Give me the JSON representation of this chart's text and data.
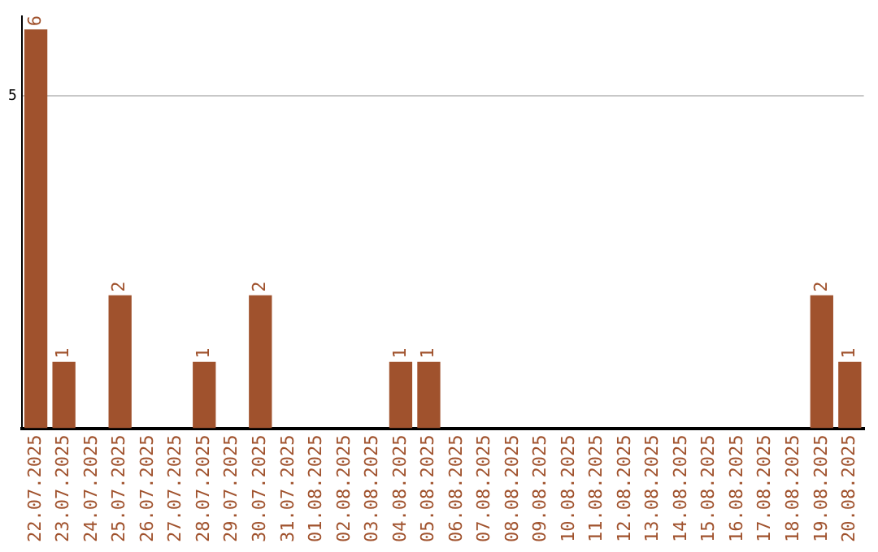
{
  "chart_data": {
    "type": "bar",
    "categories": [
      "22.07.2025",
      "23.07.2025",
      "24.07.2025",
      "25.07.2025",
      "26.07.2025",
      "27.07.2025",
      "28.07.2025",
      "29.07.2025",
      "30.07.2025",
      "31.07.2025",
      "01.08.2025",
      "02.08.2025",
      "03.08.2025",
      "04.08.2025",
      "05.08.2025",
      "06.08.2025",
      "07.08.2025",
      "08.08.2025",
      "09.08.2025",
      "10.08.2025",
      "11.08.2025",
      "12.08.2025",
      "13.08.2025",
      "14.08.2025",
      "15.08.2025",
      "16.08.2025",
      "17.08.2025",
      "18.08.2025",
      "19.08.2025",
      "20.08.2025"
    ],
    "values": [
      6,
      1,
      0,
      2,
      0,
      0,
      1,
      0,
      2,
      0,
      0,
      0,
      0,
      1,
      1,
      0,
      0,
      0,
      0,
      0,
      0,
      0,
      0,
      0,
      0,
      0,
      0,
      0,
      2,
      1
    ],
    "value_labels": [
      "6",
      "1",
      null,
      "2",
      null,
      null,
      "1",
      null,
      "2",
      null,
      null,
      null,
      null,
      "1",
      "1",
      null,
      null,
      null,
      null,
      null,
      null,
      null,
      null,
      null,
      null,
      null,
      null,
      null,
      "2",
      "1"
    ],
    "color": "#a0522d",
    "ylim": [
      0,
      6.2
    ],
    "yticks": [
      5
    ],
    "grid": "y",
    "legend": false
  }
}
